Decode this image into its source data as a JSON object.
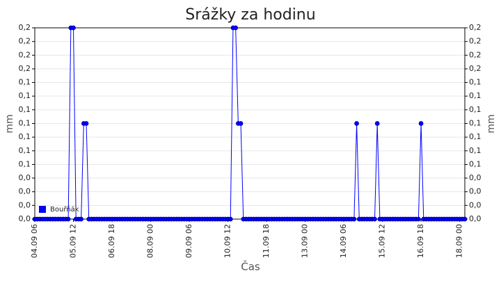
{
  "chart_data": {
    "type": "line",
    "title": "Srážky za hodinu",
    "x_label": "Čas",
    "y_label": "mm",
    "y2_label": "mm",
    "x": [
      "04.09 06",
      "04.09 08",
      "04.09 10",
      "04.09 12",
      "04.09 14",
      "04.09 16",
      "04.09 18",
      "04.09 20",
      "04.09 22",
      "05.09 00",
      "05.09 02",
      "05.09 04",
      "05.09 06",
      "05.09 08",
      "05.09 10",
      "05.09 12",
      "05.09 14",
      "05.09 16",
      "05.09 18",
      "05.09 20",
      "05.09 22",
      "06.09 00",
      "06.09 02",
      "06.09 04",
      "06.09 06",
      "06.09 08",
      "06.09 10",
      "06.09 12",
      "06.09 14",
      "06.09 16",
      "06.09 18",
      "06.09 20",
      "06.09 22",
      "07.09 00",
      "07.09 02",
      "07.09 04",
      "07.09 06",
      "07.09 08",
      "07.09 10",
      "07.09 12",
      "07.09 14",
      "07.09 16",
      "07.09 18",
      "07.09 20",
      "07.09 22",
      "08.09 00",
      "08.09 02",
      "08.09 04",
      "08.09 06",
      "08.09 08",
      "08.09 10",
      "08.09 12",
      "08.09 14",
      "08.09 16",
      "08.09 18",
      "08.09 20",
      "08.09 22",
      "09.09 00",
      "09.09 02",
      "09.09 04",
      "09.09 06",
      "09.09 08",
      "09.09 10",
      "09.09 12",
      "09.09 14",
      "09.09 16",
      "09.09 18",
      "09.09 20",
      "09.09 22",
      "10.09 00",
      "10.09 02",
      "10.09 04",
      "10.09 06",
      "10.09 08",
      "10.09 10",
      "10.09 12",
      "10.09 14",
      "10.09 16",
      "10.09 18",
      "10.09 20",
      "10.09 22",
      "11.09 00",
      "11.09 02",
      "11.09 04",
      "11.09 06",
      "11.09 08",
      "11.09 10",
      "11.09 12",
      "11.09 14",
      "11.09 16",
      "11.09 18",
      "11.09 20",
      "11.09 22",
      "12.09 00",
      "12.09 02",
      "12.09 04",
      "12.09 06",
      "12.09 08",
      "12.09 10",
      "12.09 12",
      "12.09 14",
      "12.09 16",
      "12.09 18",
      "12.09 20",
      "12.09 22",
      "13.09 00",
      "13.09 02",
      "13.09 04",
      "13.09 06",
      "13.09 08",
      "13.09 10",
      "13.09 12",
      "13.09 14",
      "13.09 16",
      "13.09 18",
      "13.09 20",
      "13.09 22",
      "14.09 00",
      "14.09 02",
      "14.09 04",
      "14.09 06",
      "14.09 08",
      "14.09 10",
      "14.09 12",
      "14.09 14",
      "14.09 16",
      "14.09 18",
      "14.09 20",
      "14.09 22",
      "15.09 00",
      "15.09 02",
      "15.09 04",
      "15.09 06",
      "15.09 08",
      "15.09 10",
      "15.09 12",
      "15.09 14",
      "15.09 16",
      "15.09 18",
      "15.09 20",
      "15.09 22",
      "16.09 00",
      "16.09 02",
      "16.09 04",
      "16.09 06",
      "16.09 08",
      "16.09 10",
      "16.09 12",
      "16.09 14",
      "16.09 16",
      "16.09 18",
      "16.09 20",
      "16.09 22",
      "17.09 00",
      "17.09 02",
      "17.09 04",
      "17.09 06",
      "17.09 08",
      "17.09 10",
      "17.09 12",
      "17.09 14",
      "17.09 16",
      "17.09 18",
      "17.09 20",
      "17.09 22",
      "18.09 00",
      "18.09 02",
      "18.09 04"
    ],
    "series": [
      {
        "name": "Bouřňák",
        "color": "#0000ff",
        "values": [
          0,
          0,
          0,
          0,
          0,
          0,
          0,
          0,
          0,
          0,
          0,
          0,
          0,
          0,
          0.2,
          0.2,
          0,
          0,
          0,
          0.1,
          0.1,
          0,
          0,
          0,
          0,
          0,
          0,
          0,
          0,
          0,
          0,
          0,
          0,
          0,
          0,
          0,
          0,
          0,
          0,
          0,
          0,
          0,
          0,
          0,
          0,
          0,
          0,
          0,
          0,
          0,
          0,
          0,
          0,
          0,
          0,
          0,
          0,
          0,
          0,
          0,
          0,
          0,
          0,
          0,
          0,
          0,
          0,
          0,
          0,
          0,
          0,
          0,
          0,
          0,
          0,
          0,
          0,
          0.2,
          0.2,
          0.1,
          0.1,
          0,
          0,
          0,
          0,
          0,
          0,
          0,
          0,
          0,
          0,
          0,
          0,
          0,
          0,
          0,
          0,
          0,
          0,
          0,
          0,
          0,
          0,
          0,
          0,
          0,
          0,
          0,
          0,
          0,
          0,
          0,
          0,
          0,
          0,
          0,
          0,
          0,
          0,
          0,
          0,
          0,
          0,
          0,
          0,
          0.1,
          0,
          0,
          0,
          0,
          0,
          0,
          0,
          0.1,
          0,
          0,
          0,
          0,
          0,
          0,
          0,
          0,
          0,
          0,
          0,
          0,
          0,
          0,
          0,
          0,
          0.1,
          0,
          0,
          0,
          0,
          0,
          0,
          0,
          0,
          0,
          0,
          0,
          0,
          0,
          0,
          0,
          0,
          0
        ]
      }
    ],
    "xlim": [
      "04.09 06",
      "18.09 04"
    ],
    "xticks": [
      "04.09 06",
      "05.09 12",
      "06.09 18",
      "08.09 00",
      "09.09 06",
      "10.09 12",
      "11.09 18",
      "13.09 00",
      "14.09 06",
      "15.09 12",
      "16.09 18",
      "18.09 00"
    ],
    "ylim": [
      0,
      0.2
    ],
    "yticks": [
      {
        "value": 0,
        "label": "0,0"
      },
      {
        "value": 0.0143,
        "label": "0,0"
      },
      {
        "value": 0.0286,
        "label": "0,0"
      },
      {
        "value": 0.0429,
        "label": "0,0"
      },
      {
        "value": 0.0571,
        "label": "0,1"
      },
      {
        "value": 0.0714,
        "label": "0,1"
      },
      {
        "value": 0.0857,
        "label": "0,1"
      },
      {
        "value": 0.1,
        "label": "0,1"
      },
      {
        "value": 0.1143,
        "label": "0,1"
      },
      {
        "value": 0.1286,
        "label": "0,1"
      },
      {
        "value": 0.1429,
        "label": "0,1"
      },
      {
        "value": 0.1571,
        "label": "0,2"
      },
      {
        "value": 0.1714,
        "label": "0,2"
      },
      {
        "value": 0.1857,
        "label": "0,2"
      },
      {
        "value": 0.2,
        "label": "0,2"
      }
    ],
    "grid": true,
    "legend": "lower left"
  }
}
